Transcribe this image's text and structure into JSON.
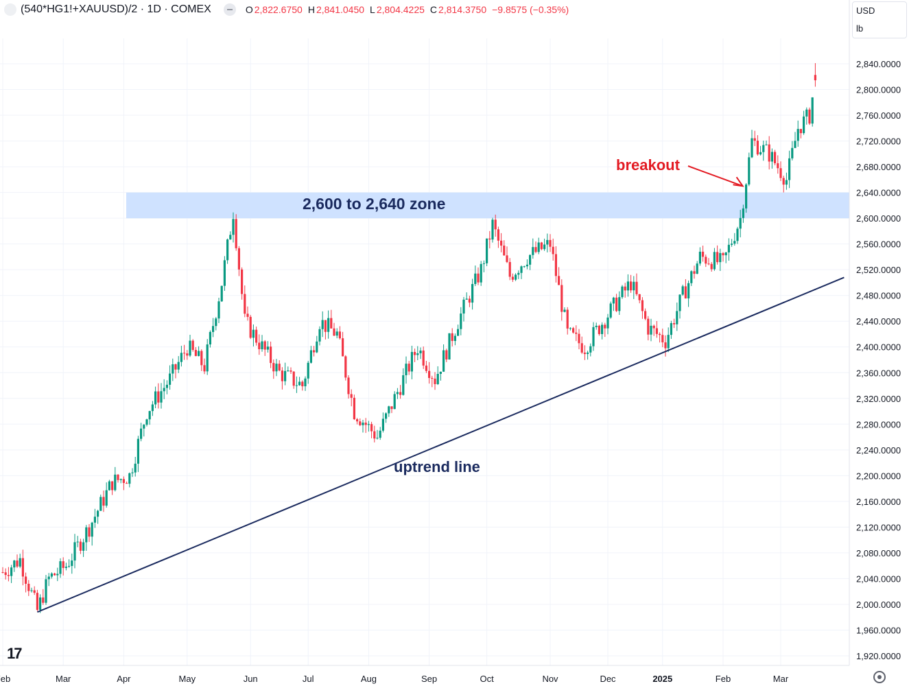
{
  "header": {
    "symbol": "(540*HG1!+XAUUSD)/2 · 1D · COMEX",
    "open_label": "O",
    "open": "2,822.6750",
    "high_label": "H",
    "high": "2,841.0450",
    "low_label": "L",
    "low": "2,804.4225",
    "close_label": "C",
    "close": "2,814.3750",
    "change": "−9.8575 (−0.35%)"
  },
  "unit_box": {
    "currency": "USD",
    "unit": "lb"
  },
  "logo": "17",
  "annotations": {
    "zone": "2,600 to 2,640 zone",
    "breakout": "breakout",
    "uptrend": "uptrend line"
  },
  "colors": {
    "up": "#089981",
    "down": "#f23645",
    "zone": "#cfe2ff",
    "trend": "#1a2a5e",
    "breakout": "#e31b23"
  },
  "chart_data": {
    "type": "candlestick",
    "title": "(540*HG1!+XAUUSD)/2 · 1D · COMEX",
    "ylim": [
      1900,
      2860
    ],
    "y_ticks": [
      1920,
      1960,
      2000,
      2040,
      2080,
      2120,
      2160,
      2200,
      2240,
      2280,
      2320,
      2360,
      2400,
      2440,
      2480,
      2520,
      2560,
      2600,
      2640,
      2680,
      2720,
      2760,
      2800,
      2840
    ],
    "y_tick_labels": [
      "1,920.0000",
      "1,960.0000",
      "2,000.0000",
      "2,040.0000",
      "2,080.0000",
      "2,120.0000",
      "2,160.0000",
      "2,200.0000",
      "2,240.0000",
      "2,280.0000",
      "2,320.0000",
      "2,360.0000",
      "2,400.0000",
      "2,440.0000",
      "2,480.0000",
      "2,520.0000",
      "2,560.0000",
      "2,600.0000",
      "2,640.0000",
      "2,680.0000",
      "2,720.0000",
      "2,760.0000",
      "2,800.0000",
      "2,840.0000"
    ],
    "x_ticks": [
      "Feb",
      "Mar",
      "Apr",
      "May",
      "Jun",
      "Jul",
      "Aug",
      "Sep",
      "Oct",
      "Nov",
      "Dec",
      "2025",
      "Feb",
      "Mar"
    ],
    "x_tick_index": [
      0,
      21,
      42,
      64,
      86,
      106,
      127,
      148,
      168,
      190,
      210,
      229,
      250,
      270
    ],
    "zone": {
      "low": 2600,
      "high": 2640,
      "label": "2,600 to 2,640 zone"
    },
    "trendline": {
      "from": [
        12,
        1988
      ],
      "to": [
        292,
        2508
      ]
    },
    "breakout_index": 258,
    "path": [
      [
        0,
        2050
      ],
      [
        6,
        2070
      ],
      [
        12,
        1990
      ],
      [
        16,
        2040
      ],
      [
        22,
        2060
      ],
      [
        30,
        2120
      ],
      [
        38,
        2190
      ],
      [
        44,
        2200
      ],
      [
        50,
        2300
      ],
      [
        58,
        2350
      ],
      [
        64,
        2400
      ],
      [
        70,
        2370
      ],
      [
        76,
        2500
      ],
      [
        80,
        2610
      ],
      [
        84,
        2440
      ],
      [
        90,
        2400
      ],
      [
        96,
        2360
      ],
      [
        104,
        2340
      ],
      [
        110,
        2440
      ],
      [
        116,
        2420
      ],
      [
        122,
        2300
      ],
      [
        130,
        2260
      ],
      [
        136,
        2320
      ],
      [
        144,
        2400
      ],
      [
        150,
        2350
      ],
      [
        158,
        2440
      ],
      [
        166,
        2520
      ],
      [
        170,
        2590
      ],
      [
        176,
        2510
      ],
      [
        182,
        2540
      ],
      [
        190,
        2560
      ],
      [
        196,
        2420
      ],
      [
        202,
        2400
      ],
      [
        210,
        2450
      ],
      [
        218,
        2500
      ],
      [
        224,
        2430
      ],
      [
        230,
        2410
      ],
      [
        236,
        2480
      ],
      [
        242,
        2540
      ],
      [
        250,
        2530
      ],
      [
        256,
        2600
      ],
      [
        260,
        2720
      ],
      [
        266,
        2700
      ],
      [
        272,
        2660
      ],
      [
        276,
        2740
      ],
      [
        280,
        2760
      ],
      [
        282,
        2815
      ]
    ],
    "last_candle": {
      "open": 2822.675,
      "high": 2841.045,
      "low": 2804.4225,
      "close": 2814.375
    }
  }
}
